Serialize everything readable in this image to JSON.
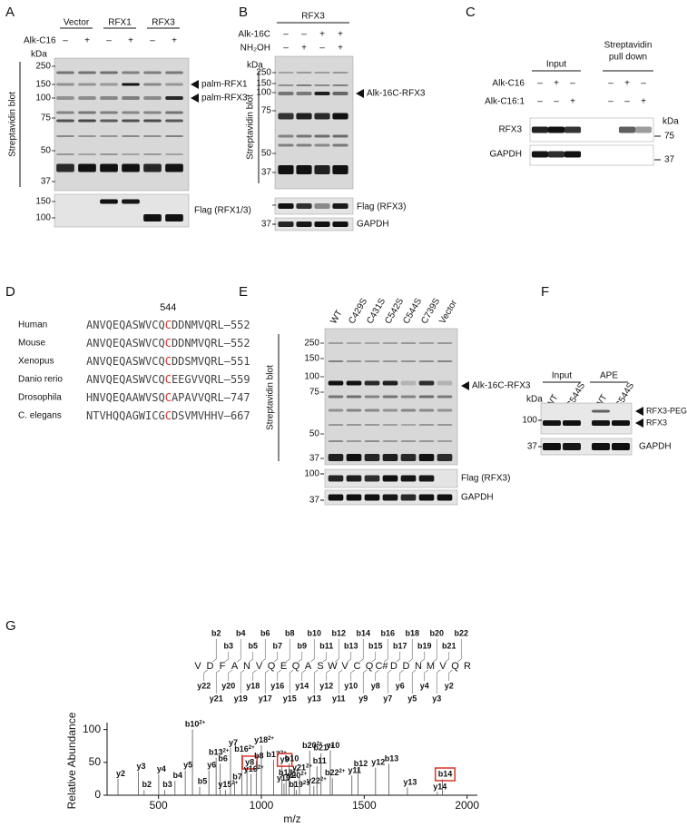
{
  "panels": {
    "a": {
      "letter": "A",
      "groups": [
        "Vector",
        "RFX1",
        "RFX3"
      ],
      "treatment": "Alk-C16",
      "signs": [
        "–",
        "+",
        "–",
        "+",
        "–",
        "+"
      ],
      "unit": "kDa",
      "markers": [
        250,
        150,
        100,
        75,
        50,
        37
      ],
      "lower_markers": [
        150,
        100
      ],
      "blot_label": "Streptavidin blot",
      "arrows": [
        "palm-RFX1",
        "palm-RFX3"
      ],
      "lower_label": "Flag (RFX1/3)"
    },
    "b": {
      "letter": "B",
      "group": "RFX3",
      "treatments": [
        {
          "name": "Alk-16C",
          "signs": [
            "–",
            "–",
            "+",
            "+"
          ]
        },
        {
          "name": "NH₂OH",
          "signs": [
            "–",
            "+",
            "–",
            "+"
          ]
        }
      ],
      "unit": "kDa",
      "markers": [
        250,
        150,
        100,
        75,
        50,
        37
      ],
      "blot_label": "Streptavidin blot",
      "arrow": "Alk-16C-RFX3",
      "flag_marker": 100,
      "flag_label": "Flag (RFX3)",
      "gapdh_marker": 37,
      "gapdh_label": "GAPDH"
    },
    "c": {
      "letter": "C",
      "input": "Input",
      "pulldown": [
        "Streptavidin",
        "pull down"
      ],
      "treatments": [
        {
          "name": "Alk-C16",
          "signs": [
            "–",
            "+",
            "–",
            "–",
            "+",
            "–"
          ]
        },
        {
          "name": "Alk-C16:1",
          "signs": [
            "–",
            "–",
            "+",
            "–",
            "–",
            "+"
          ]
        }
      ],
      "rows": [
        "RFX3",
        "GAPDH"
      ],
      "unit": "kDa",
      "markers": [
        75,
        37
      ]
    },
    "d": {
      "letter": "D",
      "site_number": 544,
      "site_color": "#d9342b",
      "rows": [
        {
          "species": "Human",
          "pre": "ANVQEQASWVCQ",
          "site": "C",
          "post": "DDNMVQRL",
          "end": "–552"
        },
        {
          "species": "Mouse",
          "pre": "ANVQEQASWVCQ",
          "site": "C",
          "post": "DDNMVQRL",
          "end": "–552"
        },
        {
          "species": "Xenopus",
          "pre": "ANVQEQASWVCQ",
          "site": "C",
          "post": "DDSMVQRL",
          "end": "–551"
        },
        {
          "species": "Danio rerio",
          "pre": "ANVQEQASWVCQ",
          "site": "C",
          "post": "EEGVVQRL",
          "end": "–559"
        },
        {
          "species": "Drosophila",
          "pre": "HNVQEQAAWVSQ",
          "site": "C",
          "post": "APAVVQRL",
          "end": "–747"
        },
        {
          "species": "C. elegans",
          "pre": "NTVHQQAGWICG",
          "site": "C",
          "post": "DSVMVHHV",
          "end": "–667"
        }
      ]
    },
    "e": {
      "letter": "E",
      "lanes": [
        {
          "label": "WT"
        },
        {
          "label": "C429S"
        },
        {
          "label": "C431S"
        },
        {
          "label": "C542S"
        },
        {
          "label": "C544S",
          "color": "#d9342b"
        },
        {
          "label": "C739S"
        },
        {
          "label": "Vector"
        }
      ],
      "markers": [
        250,
        150,
        100,
        75,
        50,
        37
      ],
      "blot_label": "Streptavidin blot",
      "arrow": "Alk-16C-RFX3",
      "flag_marker": 100,
      "flag_label": "Flag (RFX3)",
      "gapdh_marker": 37,
      "gapdh_label": "GAPDH"
    },
    "f": {
      "letter": "F",
      "groups": [
        "Input",
        "APE"
      ],
      "lanes": [
        "WT",
        "C544S",
        "WT",
        "C544S"
      ],
      "unit": "kDa",
      "arrows": [
        "RFX3-PEG",
        "RFX3"
      ],
      "marker": 100,
      "gapdh_marker": 37,
      "gapdh_label": "GAPDH"
    },
    "g": {
      "letter": "G",
      "ion_colors": {
        "b": "#3b6fd6",
        "y": "#c0201a"
      },
      "residues": [
        "V",
        "D",
        "F",
        "A",
        "N",
        "V",
        "Q",
        "E",
        "Q",
        "A",
        "S",
        "W",
        "V",
        "C",
        "Q",
        "C#",
        "D",
        "D",
        "N",
        "M",
        "V",
        "Q",
        "R"
      ],
      "b_ions": [
        "b2",
        "b3",
        "b4",
        "b5",
        "b6",
        "b7",
        "b8",
        "b9",
        "b10",
        "b11",
        "b12",
        "b13",
        "b14",
        "b15",
        "b16",
        "b17",
        "b18",
        "b19",
        "b20",
        "b21",
        "b22"
      ],
      "y_ions": [
        "y2",
        "y3",
        "y4",
        "y5",
        "y6",
        "y7",
        "y8",
        "y9",
        "y10",
        "y11",
        "y12",
        "y13",
        "y14",
        "y15",
        "y16",
        "y17",
        "y18",
        "y19",
        "y20",
        "y21",
        "y22"
      ],
      "spectrum": {
        "xlabel": "m/z",
        "ylabel": "Relative Abundance",
        "xlim": [
          250,
          2050
        ],
        "ylim": [
          0,
          105
        ],
        "xticks": [
          500,
          1000,
          1500,
          2000
        ],
        "yticks": [
          0,
          50,
          100
        ],
        "box_color": "#d9342b",
        "peaks": [
          {
            "label": "y2",
            "mz": 303,
            "abundance": 25
          },
          {
            "label": "y3",
            "mz": 402,
            "abundance": 36
          },
          {
            "label": "b2",
            "mz": 430,
            "abundance": 8
          },
          {
            "label": "y4",
            "mz": 501,
            "abundance": 32
          },
          {
            "label": "b3",
            "mz": 530,
            "abundance": 8
          },
          {
            "label": "b4",
            "mz": 580,
            "abundance": 22
          },
          {
            "label": "y5",
            "mz": 630,
            "abundance": 38
          },
          {
            "label": "b10",
            "charge": "2+",
            "mz": 665,
            "abundance": 100
          },
          {
            "label": "b5",
            "mz": 700,
            "abundance": 13
          },
          {
            "label": "y6",
            "mz": 745,
            "abundance": 38
          },
          {
            "label": "b13",
            "charge": "2+",
            "mz": 780,
            "abundance": 57
          },
          {
            "label": "b6",
            "mz": 800,
            "abundance": 48
          },
          {
            "label": "y15",
            "charge": "2+",
            "mz": 825,
            "abundance": 8
          },
          {
            "label": "y7",
            "mz": 850,
            "abundance": 72
          },
          {
            "label": "b7",
            "mz": 870,
            "abundance": 20
          },
          {
            "label": "b16",
            "charge": "2+",
            "mz": 905,
            "abundance": 62
          },
          {
            "label": "y8",
            "mz": 930,
            "abundance": 42,
            "boxed": true
          },
          {
            "label": "y16",
            "charge": "2+",
            "mz": 950,
            "abundance": 32
          },
          {
            "label": "b8",
            "mz": 975,
            "abundance": 52
          },
          {
            "label": "y18",
            "charge": "2+",
            "mz": 1000,
            "abundance": 76
          },
          {
            "label": "b17",
            "charge": "2+",
            "mz": 1060,
            "abundance": 54
          },
          {
            "label": "y9",
            "mz": 1100,
            "abundance": 46,
            "boxed": true
          },
          {
            "label": "y19",
            "charge": "2+",
            "mz": 1110,
            "abundance": 18
          },
          {
            "label": "b18",
            "charge": "2+",
            "mz": 1120,
            "abundance": 26
          },
          {
            "label": "b10",
            "mz": 1135,
            "abundance": 48
          },
          {
            "label": "y20",
            "charge": "2+",
            "mz": 1160,
            "abundance": 22
          },
          {
            "label": "b19",
            "charge": "2+",
            "mz": 1170,
            "abundance": 8
          },
          {
            "label": "y21",
            "charge": "2+",
            "mz": 1185,
            "abundance": 34
          },
          {
            "label": "b20",
            "charge": "2+",
            "mz": 1235,
            "abundance": 68
          },
          {
            "label": "y22",
            "charge": "2+",
            "mz": 1255,
            "abundance": 14
          },
          {
            "label": "b11",
            "mz": 1270,
            "abundance": 44
          },
          {
            "label": "b21",
            "charge": "2+",
            "mz": 1290,
            "abundance": 64
          },
          {
            "label": "y10",
            "mz": 1335,
            "abundance": 68
          },
          {
            "label": "b22",
            "charge": "2+",
            "mz": 1345,
            "abundance": 26
          },
          {
            "label": "y11",
            "mz": 1440,
            "abundance": 30
          },
          {
            "label": "b12",
            "mz": 1470,
            "abundance": 40
          },
          {
            "label": "y12",
            "mz": 1555,
            "abundance": 42
          },
          {
            "label": "b13",
            "mz": 1620,
            "abundance": 48
          },
          {
            "label": "y13",
            "mz": 1710,
            "abundance": 12
          },
          {
            "label": "y14",
            "mz": 1855,
            "abundance": 5
          },
          {
            "label": "b14",
            "mz": 1880,
            "abundance": 24,
            "boxed": true
          }
        ]
      }
    }
  }
}
